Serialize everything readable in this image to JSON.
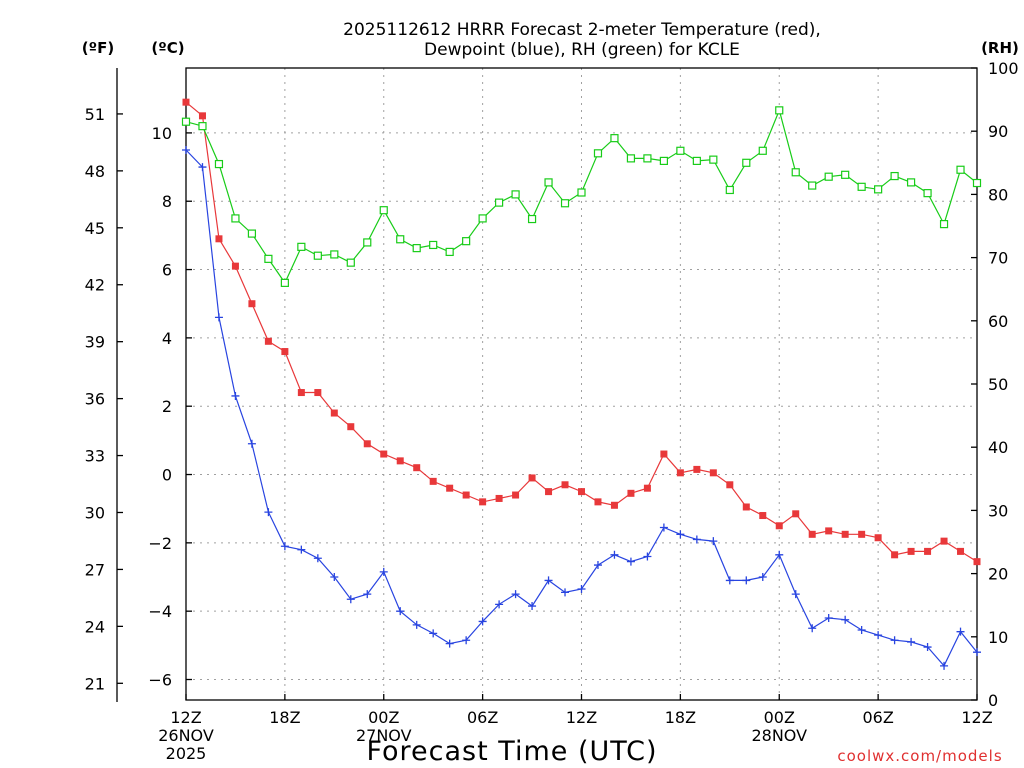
{
  "chart_data": {
    "type": "line",
    "title_line1": "2025112612 HRRR Forecast 2-meter Temperature (red),",
    "title_line2": "Dewpoint (blue), RH (green) for KCLE",
    "xlabel": "Forecast Time (UTC)",
    "credit": "coolwx.com/models",
    "units": {
      "fahrenheit": "(ºF)",
      "celsius": "(ºC)",
      "rh": "(RH)"
    },
    "x_range": [
      0,
      48
    ],
    "y_celsius_range": [
      -6.6,
      11.9
    ],
    "y_rh_range": [
      0,
      100
    ],
    "x_ticks": [
      {
        "x": 0,
        "lines": [
          "12Z",
          "26NOV",
          "2025"
        ]
      },
      {
        "x": 6,
        "lines": [
          "18Z"
        ]
      },
      {
        "x": 12,
        "lines": [
          "00Z",
          "27NOV"
        ]
      },
      {
        "x": 18,
        "lines": [
          "06Z"
        ]
      },
      {
        "x": 24,
        "lines": [
          "12Z"
        ]
      },
      {
        "x": 30,
        "lines": [
          "18Z"
        ]
      },
      {
        "x": 36,
        "lines": [
          "00Z",
          "28NOV"
        ]
      },
      {
        "x": 42,
        "lines": [
          "06Z"
        ]
      },
      {
        "x": 48,
        "lines": [
          "12Z"
        ]
      }
    ],
    "celsius_ticks": [
      "10",
      "8",
      "6",
      "4",
      "2",
      "0",
      "−2",
      "−4",
      "−6"
    ],
    "fahrenheit_ticks": [
      "51",
      "48",
      "45",
      "42",
      "39",
      "36",
      "33",
      "30",
      "27",
      "24",
      "21"
    ],
    "rh_ticks": [
      "100",
      "90",
      "80",
      "70",
      "60",
      "50",
      "40",
      "30",
      "20",
      "10",
      "0"
    ],
    "series": [
      {
        "name": "2-meter Temperature",
        "unit": "celsius",
        "color": "#e8383a",
        "marker": "filled-square",
        "x": [
          0,
          1,
          2,
          3,
          4,
          5,
          6,
          7,
          8,
          9,
          10,
          11,
          12,
          13,
          14,
          15,
          16,
          17,
          18,
          19,
          20,
          21,
          22,
          23,
          24,
          25,
          26,
          27,
          28,
          29,
          30,
          31,
          32,
          33,
          34,
          35,
          36,
          37,
          38,
          39,
          40,
          41,
          42,
          43,
          44,
          45,
          46,
          47,
          48
        ],
        "values": [
          10.9,
          10.5,
          6.9,
          6.1,
          5.0,
          3.9,
          3.6,
          2.4,
          2.4,
          1.8,
          1.4,
          0.9,
          0.6,
          0.4,
          0.2,
          -0.2,
          -0.4,
          -0.6,
          -0.8,
          -0.7,
          -0.6,
          -0.1,
          -0.5,
          -0.3,
          -0.5,
          -0.8,
          -0.9,
          -0.55,
          -0.4,
          0.6,
          0.05,
          0.15,
          0.05,
          -0.3,
          -0.95,
          -1.2,
          -1.5,
          -1.15,
          -1.75,
          -1.65,
          -1.75,
          -1.75,
          -1.85,
          -2.35,
          -2.25,
          -2.25,
          -1.95,
          -2.25,
          -2.55
        ]
      },
      {
        "name": "Dewpoint",
        "unit": "celsius",
        "color": "#2844e0",
        "marker": "plus",
        "x": [
          0,
          1,
          2,
          3,
          4,
          5,
          6,
          7,
          8,
          9,
          10,
          11,
          12,
          13,
          14,
          15,
          16,
          17,
          18,
          19,
          20,
          21,
          22,
          23,
          24,
          25,
          26,
          27,
          28,
          29,
          30,
          31,
          32,
          33,
          34,
          35,
          36,
          37,
          38,
          39,
          40,
          41,
          42,
          43,
          44,
          45,
          46,
          47,
          48
        ],
        "values": [
          9.5,
          9.0,
          4.6,
          2.3,
          0.9,
          -1.1,
          -2.1,
          -2.2,
          -2.45,
          -3.0,
          -3.65,
          -3.5,
          -2.85,
          -4.0,
          -4.4,
          -4.65,
          -4.95,
          -4.85,
          -4.3,
          -3.8,
          -3.5,
          -3.85,
          -3.1,
          -3.45,
          -3.35,
          -2.65,
          -2.35,
          -2.55,
          -2.4,
          -1.55,
          -1.75,
          -1.9,
          -1.95,
          -3.1,
          -3.1,
          -3.0,
          -2.35,
          -3.5,
          -4.5,
          -4.2,
          -4.25,
          -4.55,
          -4.7,
          -4.85,
          -4.9,
          -5.05,
          -5.6,
          -4.6,
          -5.2
        ]
      },
      {
        "name": "RH",
        "unit": "rh",
        "color": "#18cc18",
        "marker": "open-square",
        "x": [
          0,
          1,
          2,
          3,
          4,
          5,
          6,
          7,
          8,
          9,
          10,
          11,
          12,
          13,
          14,
          15,
          16,
          17,
          18,
          19,
          20,
          21,
          22,
          23,
          24,
          25,
          26,
          27,
          28,
          29,
          30,
          31,
          32,
          33,
          34,
          35,
          36,
          37,
          38,
          39,
          40,
          41,
          42,
          43,
          44,
          45,
          46,
          47,
          48
        ],
        "values": [
          91.5,
          90.8,
          84.8,
          76.2,
          73.8,
          69.8,
          66.0,
          71.7,
          70.3,
          70.5,
          69.2,
          72.4,
          77.5,
          72.9,
          71.5,
          72.0,
          70.9,
          72.6,
          76.2,
          78.7,
          80.0,
          76.1,
          81.9,
          78.6,
          80.3,
          86.5,
          88.9,
          85.7,
          85.7,
          85.3,
          86.9,
          85.3,
          85.5,
          80.7,
          85.0,
          86.9,
          93.3,
          83.5,
          81.4,
          82.8,
          83.1,
          81.2,
          80.8,
          82.9,
          81.9,
          80.2,
          75.3,
          83.9,
          81.8
        ]
      }
    ]
  }
}
